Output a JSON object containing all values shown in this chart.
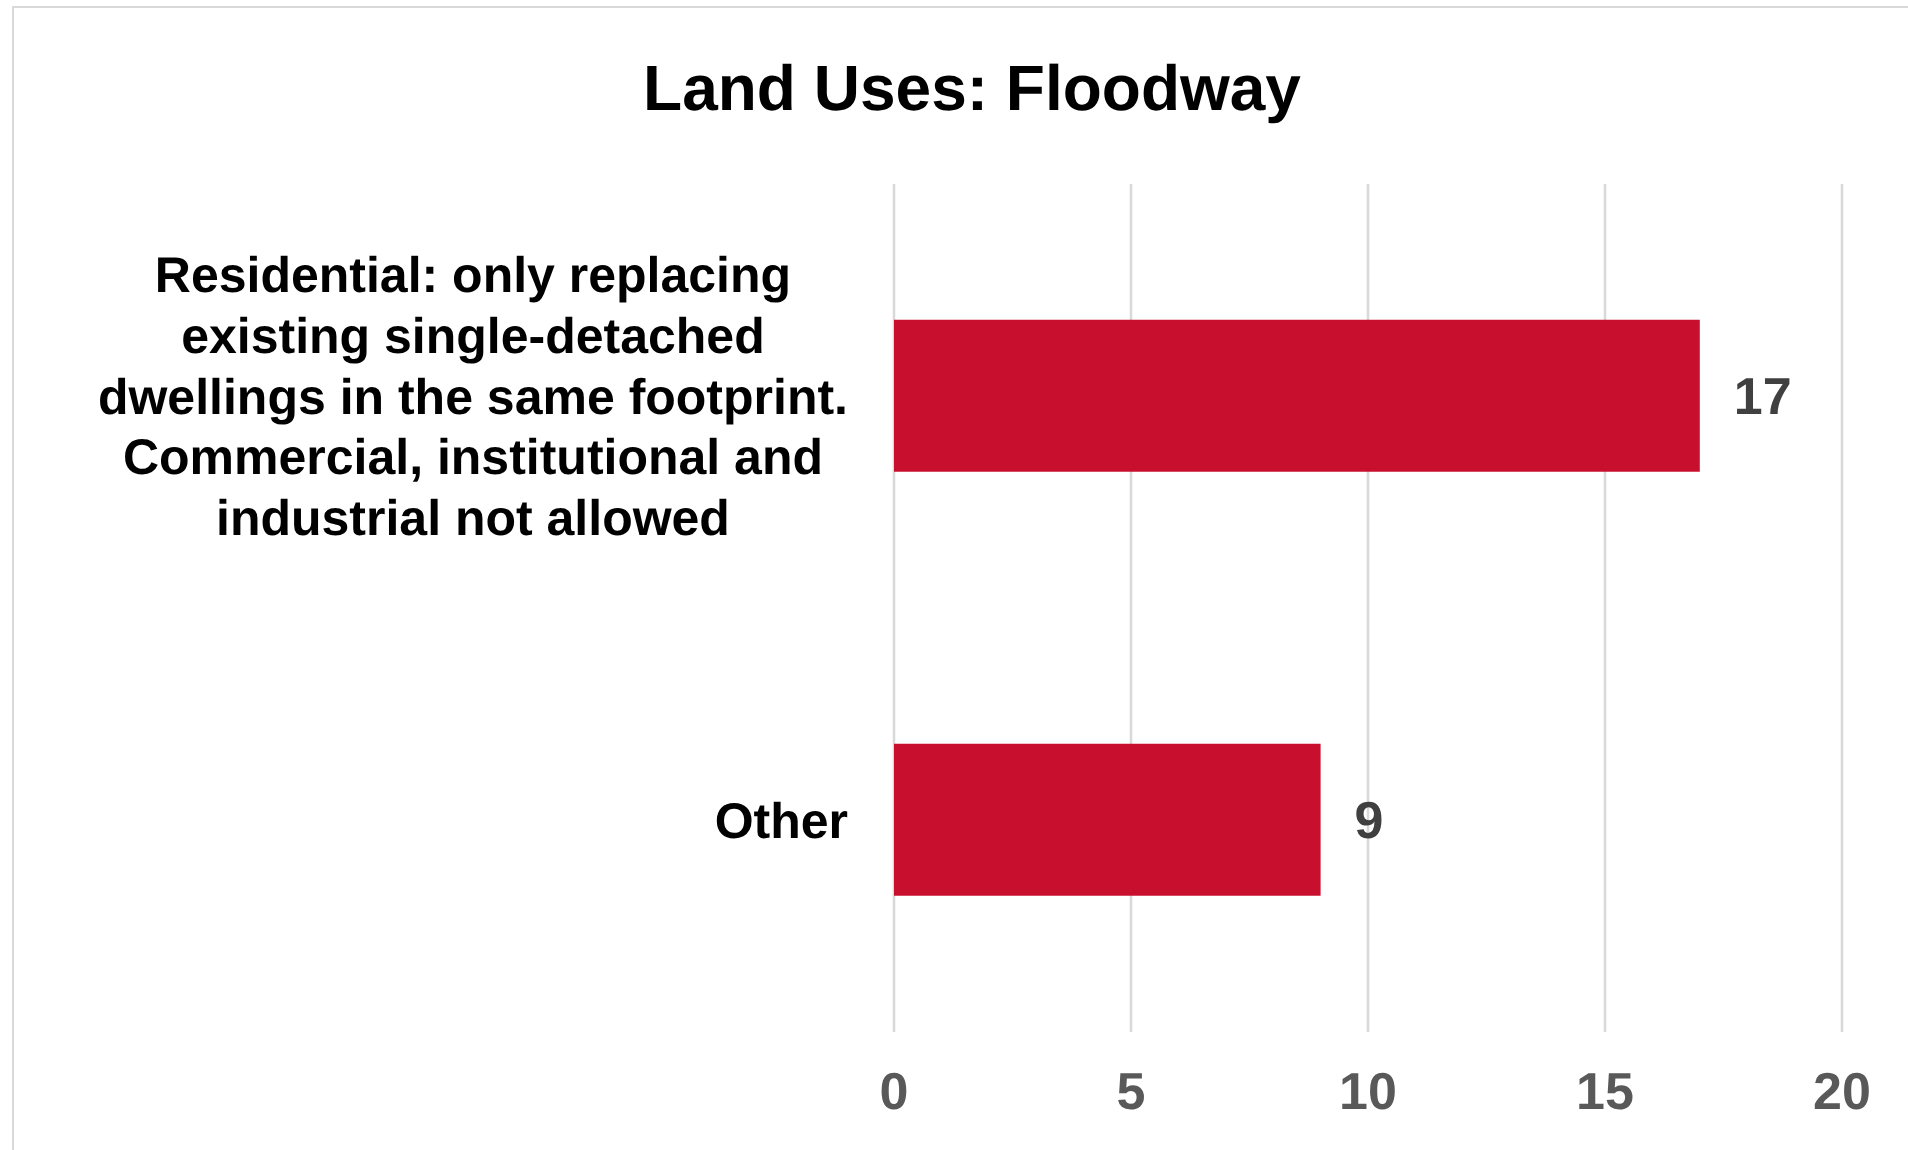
{
  "chart_data": {
    "type": "bar",
    "title": "Land Uses: Floodway",
    "orientation": "horizontal",
    "categories": [
      "Residential: only replacing existing single-detached dwellings in the same footprint. Commercial, institutional and industrial not allowed",
      "Other"
    ],
    "values": [
      17,
      9
    ],
    "color": "#c8102e",
    "xlim": [
      0,
      20
    ],
    "xticks": [
      0,
      5,
      10,
      15,
      20
    ],
    "grid": "x",
    "data_labels": true
  }
}
